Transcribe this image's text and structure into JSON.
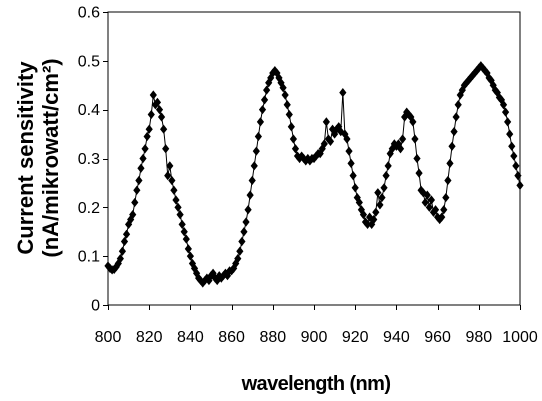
{
  "chart_data": {
    "type": "line",
    "xlabel": "wavelength (nm)",
    "ylabel": [
      "Current sensitivity",
      "(nA/mikrowatt/cm²)"
    ],
    "xlim": [
      800,
      1000
    ],
    "ylim": [
      0,
      0.6
    ],
    "xticks": [
      800,
      820,
      840,
      860,
      880,
      900,
      920,
      940,
      960,
      980,
      1000
    ],
    "xtick_labels": [
      "800",
      "820",
      "840",
      "860",
      "880",
      "900",
      "920",
      "940",
      "960",
      "980",
      "1000"
    ],
    "yticks": [
      0,
      0.1,
      0.2,
      0.3,
      0.4,
      0.5,
      0.6
    ],
    "ytick_labels": [
      "0",
      "0.1",
      "0.2",
      "0.3",
      "0.4",
      "0.5",
      "0.6"
    ],
    "grid": false,
    "legend": "none",
    "colors": {
      "series": "#000000",
      "axes": "#000000",
      "background": "#ffffff"
    },
    "series": [
      {
        "marker": "diamond",
        "x": [
          800,
          801,
          802,
          803,
          804,
          805,
          806,
          807,
          808,
          809,
          810,
          811,
          812,
          813,
          814,
          815,
          816,
          817,
          818,
          819,
          820,
          821,
          822,
          823,
          824,
          825,
          826,
          827,
          828,
          829,
          830,
          831,
          832,
          833,
          834,
          835,
          836,
          837,
          838,
          839,
          840,
          841,
          842,
          843,
          844,
          845,
          846,
          847,
          848,
          849,
          850,
          851,
          852,
          853,
          854,
          855,
          856,
          857,
          858,
          859,
          860,
          861,
          862,
          863,
          864,
          865,
          866,
          867,
          868,
          869,
          870,
          871,
          872,
          873,
          874,
          875,
          876,
          877,
          878,
          879,
          880,
          881,
          882,
          883,
          884,
          885,
          886,
          887,
          888,
          889,
          890,
          891,
          892,
          893,
          894,
          895,
          896,
          897,
          898,
          899,
          900,
          901,
          902,
          903,
          904,
          905,
          906,
          907,
          908,
          909,
          910,
          911,
          912,
          913,
          914,
          915,
          916,
          917,
          918,
          919,
          920,
          921,
          922,
          923,
          924,
          925,
          926,
          927,
          928,
          929,
          930,
          931,
          932,
          933,
          934,
          935,
          936,
          937,
          938,
          939,
          940,
          941,
          942,
          943,
          944,
          945,
          946,
          947,
          948,
          949,
          950,
          951,
          952,
          953,
          954,
          955,
          956,
          957,
          958,
          959,
          960,
          961,
          962,
          963,
          964,
          965,
          966,
          967,
          968,
          969,
          970,
          971,
          972,
          973,
          974,
          975,
          976,
          977,
          978,
          979,
          980,
          981,
          982,
          983,
          984,
          985,
          986,
          987,
          988,
          989,
          990,
          991,
          992,
          993,
          994,
          995,
          996,
          997,
          998,
          999,
          1000
        ],
        "y": [
          0.08,
          0.075,
          0.072,
          0.073,
          0.078,
          0.085,
          0.095,
          0.11,
          0.13,
          0.145,
          0.165,
          0.175,
          0.185,
          0.21,
          0.235,
          0.255,
          0.28,
          0.3,
          0.32,
          0.345,
          0.36,
          0.39,
          0.43,
          0.41,
          0.415,
          0.4,
          0.385,
          0.36,
          0.32,
          0.265,
          0.285,
          0.255,
          0.235,
          0.215,
          0.2,
          0.185,
          0.165,
          0.15,
          0.135,
          0.115,
          0.1,
          0.085,
          0.075,
          0.065,
          0.055,
          0.05,
          0.045,
          0.05,
          0.055,
          0.05,
          0.06,
          0.065,
          0.055,
          0.05,
          0.06,
          0.055,
          0.06,
          0.065,
          0.06,
          0.07,
          0.07,
          0.075,
          0.085,
          0.095,
          0.11,
          0.13,
          0.15,
          0.17,
          0.195,
          0.225,
          0.255,
          0.285,
          0.315,
          0.345,
          0.375,
          0.4,
          0.42,
          0.44,
          0.455,
          0.465,
          0.475,
          0.48,
          0.475,
          0.465,
          0.455,
          0.445,
          0.43,
          0.41,
          0.39,
          0.365,
          0.34,
          0.32,
          0.305,
          0.3,
          0.305,
          0.3,
          0.295,
          0.3,
          0.295,
          0.3,
          0.3,
          0.305,
          0.31,
          0.31,
          0.32,
          0.33,
          0.375,
          0.34,
          0.335,
          0.36,
          0.35,
          0.36,
          0.365,
          0.355,
          0.435,
          0.35,
          0.34,
          0.315,
          0.29,
          0.265,
          0.24,
          0.22,
          0.21,
          0.195,
          0.185,
          0.17,
          0.165,
          0.18,
          0.165,
          0.175,
          0.19,
          0.23,
          0.205,
          0.22,
          0.24,
          0.265,
          0.285,
          0.31,
          0.32,
          0.33,
          0.325,
          0.33,
          0.32,
          0.34,
          0.385,
          0.395,
          0.39,
          0.385,
          0.375,
          0.34,
          0.3,
          0.27,
          0.235,
          0.23,
          0.21,
          0.225,
          0.2,
          0.215,
          0.19,
          0.195,
          0.18,
          0.175,
          0.18,
          0.195,
          0.22,
          0.255,
          0.29,
          0.325,
          0.355,
          0.385,
          0.41,
          0.43,
          0.44,
          0.45,
          0.455,
          0.46,
          0.465,
          0.47,
          0.475,
          0.48,
          0.485,
          0.49,
          0.485,
          0.48,
          0.475,
          0.465,
          0.46,
          0.45,
          0.44,
          0.435,
          0.425,
          0.42,
          0.41,
          0.395,
          0.375,
          0.35,
          0.325,
          0.305,
          0.285,
          0.265,
          0.245
        ]
      }
    ]
  }
}
